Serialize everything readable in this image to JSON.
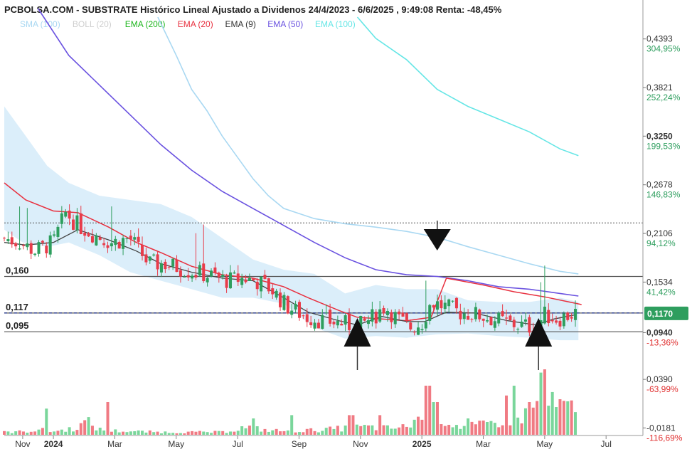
{
  "chart_data": {
    "type": "candlestick",
    "title": "PCBOLSA.COM - SUBSTRATE Histórico Lineal Ajustado a Dividenos 24/4/2023 - 6/6/2025 , 9:49:08 Renta: -48,45%",
    "legend": [
      {
        "label": "SMA (100)",
        "color": "#a9d8f2"
      },
      {
        "label": "BOLL (20)",
        "color": "#cfcfcf"
      },
      {
        "label": "EMA (200)",
        "color": "#1fb61f"
      },
      {
        "label": "EMA (20)",
        "color": "#e8303f"
      },
      {
        "label": "EMA (9)",
        "color": "#333333"
      },
      {
        "label": "EMA (50)",
        "color": "#6a52e0"
      },
      {
        "label": "EMA (100)",
        "color": "#66e6e6"
      }
    ],
    "ylim": [
      -0.027,
      0.465
    ],
    "y_ticks": [
      {
        "value": 0.4393,
        "label": "0,4393",
        "pct": "304,95%",
        "pct_color": "#2e9e5e"
      },
      {
        "value": 0.3821,
        "label": "0,3821",
        "pct": "252,24%",
        "pct_color": "#2e9e5e"
      },
      {
        "value": 0.325,
        "label": "0,3250",
        "pct": "199,53%",
        "pct_color": "#2e9e5e",
        "bold": true
      },
      {
        "value": 0.2678,
        "label": "0,2678",
        "pct": "146,83%",
        "pct_color": "#2e9e5e"
      },
      {
        "value": 0.2106,
        "label": "0,2106",
        "pct": "94,12%",
        "pct_color": "#2e9e5e"
      },
      {
        "value": 0.1534,
        "label": "0,1534",
        "pct": "41,42%",
        "pct_color": "#2e9e5e"
      },
      {
        "value": 0.094,
        "label": "0,0940",
        "pct": "-13,36%",
        "pct_color": "#e03030",
        "bold": true
      },
      {
        "value": 0.039,
        "label": "0,0390",
        "pct": "-63,99%",
        "pct_color": "#e03030"
      },
      {
        "value": -0.0181,
        "label": "-0,0181",
        "pct": "-116,69%",
        "pct_color": "#e03030"
      }
    ],
    "current_price": {
      "value": 0.117,
      "label": "0,1170",
      "color": "#2e9e5e"
    },
    "reference_lines": [
      {
        "value": 0.16,
        "label": "0,160",
        "style": "solid"
      },
      {
        "value": 0.117,
        "label": "0,117",
        "style": "solid"
      },
      {
        "value": 0.095,
        "label": "0,095",
        "style": "solid"
      },
      {
        "value": 0.223,
        "label": "",
        "style": "dotted"
      }
    ],
    "x_labels": [
      {
        "month": 3.5,
        "label": "Nov",
        "bold": false
      },
      {
        "month": 4.5,
        "label": "2024",
        "bold": true
      },
      {
        "month": 6.5,
        "label": "Mar",
        "bold": false
      },
      {
        "month": 8.5,
        "label": "May",
        "bold": false
      },
      {
        "month": 10.5,
        "label": "Jul",
        "bold": false
      },
      {
        "month": 12.5,
        "label": "Sep",
        "bold": false
      },
      {
        "month": 14.5,
        "label": "Nov",
        "bold": false
      },
      {
        "month": 16.5,
        "label": "2025",
        "bold": true
      },
      {
        "month": 18.5,
        "label": "Mar",
        "bold": false
      },
      {
        "month": 20.5,
        "label": "May",
        "bold": false
      },
      {
        "month": 22.5,
        "label": "Jul",
        "bold": false
      }
    ],
    "x_range_months": [
      2.9,
      23.7
    ],
    "arrows": [
      {
        "month": 17.0,
        "direction": "down"
      },
      {
        "month": 14.4,
        "direction": "up"
      },
      {
        "month": 20.3,
        "direction": "up"
      }
    ],
    "close_anchors": [
      {
        "month": 2.9,
        "value": 0.205
      },
      {
        "month": 3.4,
        "value": 0.2
      },
      {
        "month": 3.9,
        "value": 0.19
      },
      {
        "month": 4.5,
        "value": 0.2
      },
      {
        "month": 4.9,
        "value": 0.235
      },
      {
        "month": 5.3,
        "value": 0.22
      },
      {
        "month": 5.8,
        "value": 0.21
      },
      {
        "month": 6.4,
        "value": 0.2
      },
      {
        "month": 7.0,
        "value": 0.205
      },
      {
        "month": 7.6,
        "value": 0.175
      },
      {
        "month": 8.1,
        "value": 0.175
      },
      {
        "month": 8.6,
        "value": 0.17
      },
      {
        "month": 9.1,
        "value": 0.165
      },
      {
        "month": 9.7,
        "value": 0.16
      },
      {
        "month": 10.2,
        "value": 0.155
      },
      {
        "month": 10.7,
        "value": 0.158
      },
      {
        "month": 11.1,
        "value": 0.155
      },
      {
        "month": 11.6,
        "value": 0.145
      },
      {
        "month": 12.1,
        "value": 0.125
      },
      {
        "month": 12.7,
        "value": 0.113
      },
      {
        "month": 13.3,
        "value": 0.108
      },
      {
        "month": 13.9,
        "value": 0.105
      },
      {
        "month": 14.4,
        "value": 0.1
      },
      {
        "month": 14.9,
        "value": 0.112
      },
      {
        "month": 15.3,
        "value": 0.125
      },
      {
        "month": 15.7,
        "value": 0.11
      },
      {
        "month": 16.1,
        "value": 0.1
      },
      {
        "month": 16.5,
        "value": 0.105
      },
      {
        "month": 16.8,
        "value": 0.13
      },
      {
        "month": 17.2,
        "value": 0.125
      },
      {
        "month": 17.7,
        "value": 0.118
      },
      {
        "month": 18.3,
        "value": 0.115
      },
      {
        "month": 18.8,
        "value": 0.11
      },
      {
        "month": 19.3,
        "value": 0.105
      },
      {
        "month": 19.8,
        "value": 0.102
      },
      {
        "month": 20.2,
        "value": 0.1
      },
      {
        "month": 20.5,
        "value": 0.115
      },
      {
        "month": 20.9,
        "value": 0.11
      },
      {
        "month": 21.5,
        "value": 0.117
      }
    ],
    "ema_9": [
      [
        2.9,
        0.2
      ],
      [
        3.6,
        0.197
      ],
      [
        4.5,
        0.2
      ],
      [
        5.3,
        0.215
      ],
      [
        6.3,
        0.203
      ],
      [
        7.2,
        0.19
      ],
      [
        8.0,
        0.175
      ],
      [
        9.0,
        0.165
      ],
      [
        10.0,
        0.158
      ],
      [
        11.0,
        0.155
      ],
      [
        12.0,
        0.135
      ],
      [
        12.8,
        0.118
      ],
      [
        13.8,
        0.108
      ],
      [
        14.4,
        0.103
      ],
      [
        15.2,
        0.113
      ],
      [
        16.0,
        0.107
      ],
      [
        16.6,
        0.107
      ],
      [
        17.3,
        0.118
      ],
      [
        18.2,
        0.117
      ],
      [
        19.3,
        0.108
      ],
      [
        20.2,
        0.103
      ],
      [
        20.8,
        0.11
      ],
      [
        21.5,
        0.115
      ]
    ],
    "ema_20": [
      [
        2.9,
        0.27
      ],
      [
        3.6,
        0.25
      ],
      [
        4.5,
        0.237
      ],
      [
        5.3,
        0.235
      ],
      [
        6.3,
        0.218
      ],
      [
        7.2,
        0.2
      ],
      [
        8.0,
        0.188
      ],
      [
        9.0,
        0.172
      ],
      [
        10.0,
        0.162
      ],
      [
        11.0,
        0.158
      ],
      [
        12.0,
        0.148
      ],
      [
        12.8,
        0.135
      ],
      [
        13.8,
        0.12
      ],
      [
        14.4,
        0.112
      ],
      [
        15.2,
        0.11
      ],
      [
        16.0,
        0.108
      ],
      [
        16.8,
        0.112
      ],
      [
        17.3,
        0.158
      ],
      [
        18.5,
        0.15
      ],
      [
        19.5,
        0.142
      ],
      [
        20.5,
        0.136
      ],
      [
        21.3,
        0.13
      ],
      [
        21.7,
        0.127
      ]
    ],
    "ema_50": [
      [
        4.0,
        0.475
      ],
      [
        5.0,
        0.42
      ],
      [
        6.0,
        0.385
      ],
      [
        7.0,
        0.35
      ],
      [
        8.0,
        0.315
      ],
      [
        9.0,
        0.285
      ],
      [
        10.0,
        0.26
      ],
      [
        11.0,
        0.24
      ],
      [
        12.0,
        0.22
      ],
      [
        13.0,
        0.2
      ],
      [
        14.0,
        0.182
      ],
      [
        15.0,
        0.168
      ],
      [
        16.0,
        0.162
      ],
      [
        17.0,
        0.16
      ],
      [
        18.0,
        0.155
      ],
      [
        19.0,
        0.148
      ],
      [
        20.0,
        0.145
      ],
      [
        21.0,
        0.14
      ],
      [
        21.6,
        0.137
      ]
    ],
    "sma_100": [
      [
        7.9,
        0.465
      ],
      [
        8.5,
        0.42
      ],
      [
        9.0,
        0.38
      ],
      [
        9.5,
        0.355
      ],
      [
        10.0,
        0.325
      ],
      [
        10.5,
        0.3
      ],
      [
        11.0,
        0.275
      ],
      [
        11.5,
        0.255
      ],
      [
        12.0,
        0.24
      ],
      [
        13.0,
        0.228
      ],
      [
        14.0,
        0.222
      ],
      [
        15.0,
        0.218
      ],
      [
        16.0,
        0.213
      ],
      [
        17.0,
        0.206
      ],
      [
        18.0,
        0.195
      ],
      [
        19.0,
        0.185
      ],
      [
        20.0,
        0.175
      ],
      [
        21.0,
        0.166
      ],
      [
        21.6,
        0.163
      ]
    ],
    "ema_100": [
      [
        14.4,
        0.465
      ],
      [
        15.0,
        0.44
      ],
      [
        16.0,
        0.415
      ],
      [
        17.0,
        0.38
      ],
      [
        18.0,
        0.36
      ],
      [
        19.0,
        0.345
      ],
      [
        20.0,
        0.33
      ],
      [
        21.0,
        0.31
      ],
      [
        21.6,
        0.302
      ]
    ],
    "boll_upper": [
      [
        2.9,
        0.36
      ],
      [
        3.5,
        0.33
      ],
      [
        4.3,
        0.29
      ],
      [
        5.0,
        0.27
      ],
      [
        6.0,
        0.255
      ],
      [
        7.0,
        0.25
      ],
      [
        8.0,
        0.245
      ],
      [
        9.0,
        0.23
      ],
      [
        10.0,
        0.205
      ],
      [
        11.0,
        0.18
      ],
      [
        12.0,
        0.168
      ],
      [
        13.0,
        0.163
      ],
      [
        14.0,
        0.14
      ],
      [
        15.0,
        0.15
      ],
      [
        16.0,
        0.145
      ],
      [
        17.0,
        0.145
      ],
      [
        18.0,
        0.132
      ],
      [
        19.0,
        0.13
      ],
      [
        20.0,
        0.13
      ],
      [
        21.0,
        0.135
      ],
      [
        21.6,
        0.13
      ]
    ],
    "boll_lower": [
      [
        2.9,
        0.215
      ],
      [
        3.5,
        0.2
      ],
      [
        4.3,
        0.195
      ],
      [
        5.0,
        0.2
      ],
      [
        6.0,
        0.185
      ],
      [
        7.0,
        0.165
      ],
      [
        8.0,
        0.155
      ],
      [
        9.0,
        0.145
      ],
      [
        10.0,
        0.135
      ],
      [
        11.0,
        0.135
      ],
      [
        12.0,
        0.128
      ],
      [
        13.0,
        0.1
      ],
      [
        14.0,
        0.087
      ],
      [
        15.0,
        0.09
      ],
      [
        16.0,
        0.088
      ],
      [
        17.0,
        0.092
      ],
      [
        18.0,
        0.093
      ],
      [
        19.0,
        0.09
      ],
      [
        20.0,
        0.088
      ],
      [
        21.0,
        0.085
      ],
      [
        21.6,
        0.085
      ]
    ],
    "volume_anchors": [
      [
        2.9,
        0.04
      ],
      [
        3.6,
        0.05
      ],
      [
        4.0,
        0.08
      ],
      [
        4.5,
        0.05
      ],
      [
        5.2,
        0.1
      ],
      [
        5.6,
        0.2
      ],
      [
        6.0,
        0.08
      ],
      [
        6.5,
        0.06
      ],
      [
        7.2,
        0.05
      ],
      [
        8.0,
        0.04
      ],
      [
        9.0,
        0.04
      ],
      [
        10.0,
        0.04
      ],
      [
        10.8,
        0.12
      ],
      [
        11.4,
        0.07
      ],
      [
        12.0,
        0.06
      ],
      [
        13.0,
        0.07
      ],
      [
        14.0,
        0.1
      ],
      [
        14.6,
        0.12
      ],
      [
        15.4,
        0.1
      ],
      [
        16.0,
        0.12
      ],
      [
        16.8,
        0.4
      ],
      [
        17.3,
        0.2
      ],
      [
        17.8,
        0.12
      ],
      [
        18.5,
        0.15
      ],
      [
        19.2,
        0.22
      ],
      [
        19.8,
        0.28
      ],
      [
        20.3,
        0.5
      ],
      [
        20.7,
        0.45
      ],
      [
        21.2,
        0.4
      ],
      [
        21.6,
        0.35
      ]
    ],
    "volume_spikes": [
      [
        4.3,
        0.4
      ],
      [
        6.3,
        0.5
      ],
      [
        11.0,
        0.25
      ],
      [
        12.3,
        0.3
      ],
      [
        14.2,
        0.3
      ],
      [
        15.1,
        0.3
      ],
      [
        16.7,
        0.75
      ],
      [
        16.95,
        0.5
      ],
      [
        18.0,
        0.25
      ],
      [
        19.3,
        0.6
      ],
      [
        19.5,
        0.75
      ],
      [
        20.0,
        0.5
      ],
      [
        20.35,
        0.95
      ],
      [
        20.55,
        1.0
      ],
      [
        20.8,
        0.5
      ],
      [
        21.0,
        0.5
      ]
    ]
  }
}
